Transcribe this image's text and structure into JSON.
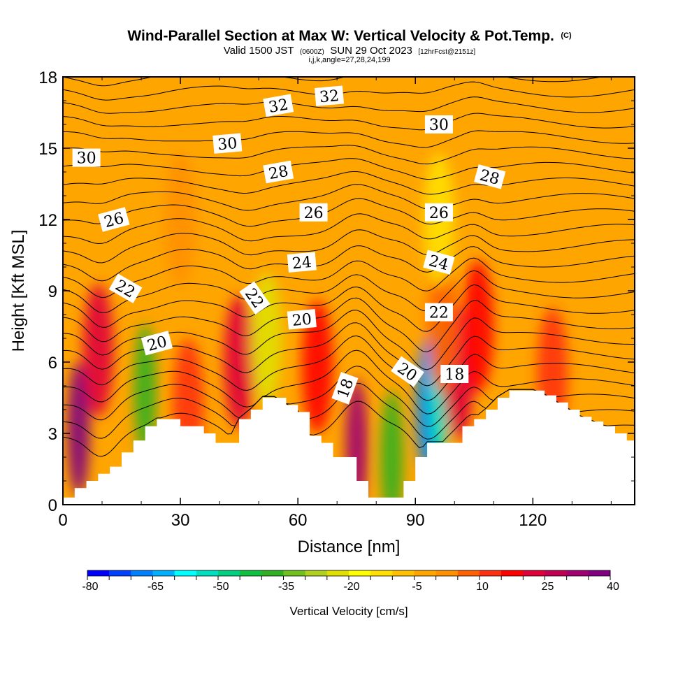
{
  "chart_data": {
    "type": "heatmap",
    "title_main": "Wind-Parallel Section at Max W: Vertical Velocity & Pot.Temp.",
    "title_mark": "(C)",
    "subtitle_a": "Valid 1500 JST",
    "subtitle_b": "(0600Z)",
    "subtitle_c": "SUN 29 Oct 2023",
    "subtitle_d": "[12hrFcst@2151z]",
    "subtitle_line3": "i,j,k,angle=27,28,24,199",
    "xlabel": "Distance [nm]",
    "ylabel": "Height [Kft MSL]",
    "xlim": [
      0,
      146
    ],
    "ylim": [
      0,
      18
    ],
    "x_ticks": [
      0,
      30,
      60,
      90,
      120
    ],
    "y_ticks": [
      0,
      3,
      6,
      9,
      12,
      15,
      18
    ],
    "colorbar": {
      "title": "Vertical Velocity [cm/s]",
      "min": -80,
      "max": 45,
      "tick_values": [
        -80,
        -65,
        -50,
        -35,
        -20,
        -5,
        10,
        25,
        40
      ],
      "colors": [
        "#0000ff",
        "#0040ff",
        "#0080ff",
        "#00b0ff",
        "#00ffff",
        "#00e0c0",
        "#00d080",
        "#10c040",
        "#30b020",
        "#70c020",
        "#b0d020",
        "#e0e000",
        "#ffff00",
        "#ffe000",
        "#ffc000",
        "#ffa500",
        "#ff9000",
        "#ff6000",
        "#ff3010",
        "#ff0000",
        "#e0003a",
        "#c00050",
        "#a00070",
        "#800080"
      ]
    },
    "terrain_profile": {
      "x": [
        0,
        3,
        6,
        9,
        12,
        15,
        18,
        21,
        24,
        27,
        30,
        33,
        36,
        39,
        42,
        45,
        48,
        51,
        54,
        57,
        60,
        63,
        66,
        69,
        72,
        75,
        78,
        81,
        84,
        87,
        90,
        93,
        96,
        99,
        102,
        105,
        108,
        111,
        114,
        117,
        120,
        123,
        126,
        129,
        132,
        135,
        138,
        141,
        144,
        146
      ],
      "y": [
        0.3,
        0.7,
        1.0,
        1.3,
        1.6,
        2.2,
        2.7,
        3.3,
        3.6,
        3.6,
        3.3,
        3.3,
        3.0,
        2.6,
        2.6,
        3.6,
        4.0,
        4.5,
        4.5,
        4.2,
        3.9,
        2.9,
        2.6,
        2.0,
        2.0,
        1.0,
        0.3,
        0.3,
        0.3,
        1.0,
        2.0,
        2.6,
        2.6,
        2.6,
        3.3,
        3.6,
        4.0,
        4.5,
        4.8,
        4.8,
        4.8,
        4.6,
        4.3,
        4.0,
        3.7,
        3.5,
        3.3,
        3.0,
        2.7,
        2.7
      ]
    },
    "velocity_features": [
      {
        "x": 4,
        "y": 3.2,
        "value": 40
      },
      {
        "x": 9,
        "y": 6.5,
        "value": 25
      },
      {
        "x": 21,
        "y": 4.8,
        "value": -35
      },
      {
        "x": 32,
        "y": 4.2,
        "value": 15
      },
      {
        "x": 45,
        "y": 6.0,
        "value": 25
      },
      {
        "x": 52,
        "y": 7.0,
        "value": -20
      },
      {
        "x": 65,
        "y": 5.8,
        "value": 20
      },
      {
        "x": 75,
        "y": 2.5,
        "value": 35
      },
      {
        "x": 84,
        "y": 2.0,
        "value": -35
      },
      {
        "x": 93,
        "y": 4.2,
        "value": -65
      },
      {
        "x": 96,
        "y": 4.8,
        "value": -50
      },
      {
        "x": 101,
        "y": 5.5,
        "value": 25
      },
      {
        "x": 106,
        "y": 7.5,
        "value": 20
      },
      {
        "x": 97,
        "y": 7.5,
        "value": 10
      },
      {
        "x": 30,
        "y": 12.0,
        "value": 8
      },
      {
        "x": 96,
        "y": 12.0,
        "value": -10
      },
      {
        "x": 125,
        "y": 5.5,
        "value": 15
      }
    ],
    "theta_contours": {
      "levels": [
        17,
        17.5,
        18,
        18.5,
        19,
        19.5,
        20,
        20.5,
        21,
        21.5,
        22,
        22.5,
        23,
        23.5,
        24,
        24.5,
        25,
        25.5,
        26,
        26.5,
        27,
        27.5,
        28,
        28.5,
        29,
        29.5,
        30,
        30.5,
        31,
        31.5,
        32,
        32.5
      ],
      "labels": [
        {
          "text": "18",
          "x": 72,
          "y": 4.9,
          "angle": -70
        },
        {
          "text": "18",
          "x": 100,
          "y": 5.5,
          "angle": 0
        },
        {
          "text": "20",
          "x": 24,
          "y": 6.8,
          "angle": -15
        },
        {
          "text": "20",
          "x": 61,
          "y": 7.8,
          "angle": -5
        },
        {
          "text": "20",
          "x": 88,
          "y": 5.6,
          "angle": 35
        },
        {
          "text": "22",
          "x": 16,
          "y": 9.1,
          "angle": 30
        },
        {
          "text": "22",
          "x": 49,
          "y": 8.7,
          "angle": 55
        },
        {
          "text": "22",
          "x": 96,
          "y": 8.1,
          "angle": 0
        },
        {
          "text": "24",
          "x": 61,
          "y": 10.2,
          "angle": -5
        },
        {
          "text": "24",
          "x": 96,
          "y": 10.2,
          "angle": 15
        },
        {
          "text": "26",
          "x": 13,
          "y": 12.0,
          "angle": -15
        },
        {
          "text": "26",
          "x": 64,
          "y": 12.3,
          "angle": 0
        },
        {
          "text": "26",
          "x": 96,
          "y": 12.3,
          "angle": 0
        },
        {
          "text": "28",
          "x": 55,
          "y": 14.0,
          "angle": -10
        },
        {
          "text": "28",
          "x": 109,
          "y": 13.8,
          "angle": 15
        },
        {
          "text": "30",
          "x": 6,
          "y": 14.6,
          "angle": 0
        },
        {
          "text": "30",
          "x": 42,
          "y": 15.2,
          "angle": -5
        },
        {
          "text": "30",
          "x": 96,
          "y": 16.0,
          "angle": 0
        },
        {
          "text": "32",
          "x": 55,
          "y": 16.8,
          "angle": -10
        },
        {
          "text": "32",
          "x": 68,
          "y": 17.2,
          "angle": -5
        }
      ]
    }
  }
}
